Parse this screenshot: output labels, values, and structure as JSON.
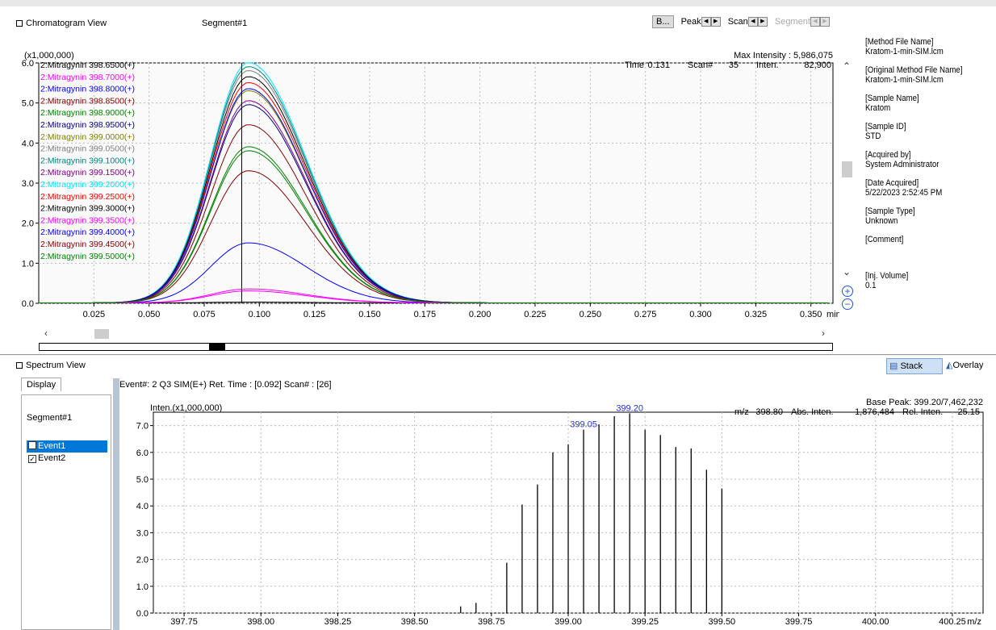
{
  "chrom": {
    "title": "Chromatogram View",
    "segment": "Segment#1",
    "b_button": "B...",
    "peak_label": "Peak",
    "scan_label": "Scan",
    "segment_label": "Segment",
    "y_unit": "(x1,000,000)",
    "max_intensity": "Max Intensity : 5,986,075",
    "cursor_readout": {
      "time_label": "Time",
      "time": "0.131",
      "scan_label": "Scan#",
      "scan": "35",
      "inten_label": "Inten.",
      "inten": "82,900"
    },
    "x_unit": "min",
    "x_ticks": [
      "0.025",
      "0.050",
      "0.075",
      "0.100",
      "0.125",
      "0.150",
      "0.175",
      "0.200",
      "0.225",
      "0.250",
      "0.275",
      "0.300",
      "0.325",
      "0.350"
    ],
    "y_ticks": [
      "0.0",
      "1.0",
      "2.0",
      "3.0",
      "4.0",
      "5.0",
      "6.0"
    ],
    "cursor_time": 0.092,
    "legend": [
      {
        "label": "2:Mitragynin 398.6500(+)",
        "color": "#000000",
        "height": 0.02
      },
      {
        "label": "2:Mitragynin 398.7000(+)",
        "color": "#ff00ff",
        "height": 0.35
      },
      {
        "label": "2:Mitragynin 398.8000(+)",
        "color": "#0000ff",
        "height": 1.5
      },
      {
        "label": "2:Mitragynin 398.8500(+)",
        "color": "#800000",
        "height": 3.3
      },
      {
        "label": "2:Mitragynin 398.9000(+)",
        "color": "#008000",
        "height": 3.9
      },
      {
        "label": "2:Mitragynin 398.9500(+)",
        "color": "#000080",
        "height": 4.95
      },
      {
        "label": "2:Mitragynin 399.0000(+)",
        "color": "#808000",
        "height": 5.3
      },
      {
        "label": "2:Mitragynin 399.0500(+)",
        "color": "#808080",
        "height": 5.8
      },
      {
        "label": "2:Mitragynin 399.1000(+)",
        "color": "#008080",
        "height": 5.9
      },
      {
        "label": "2:Mitragynin 399.1500(+)",
        "color": "#800080",
        "height": 5.05
      },
      {
        "label": "2:Mitragynin 399.2000(+)",
        "color": "#00e5ff",
        "height": 6.0
      },
      {
        "label": "2:Mitragynin 399.2500(+)",
        "color": "#ff0000",
        "height": 5.5
      },
      {
        "label": "2:Mitragynin 399.3000(+)",
        "color": "#000000",
        "height": 5.65
      },
      {
        "label": "2:Mitragynin 399.3500(+)",
        "color": "#ff00ff",
        "height": 0.3
      },
      {
        "label": "2:Mitragynin 399.4000(+)",
        "color": "#0000ff",
        "height": 5.35
      },
      {
        "label": "2:Mitragynin 399.4500(+)",
        "color": "#800000",
        "height": 4.45
      },
      {
        "label": "2:Mitragynin 399.5000(+)",
        "color": "#008000",
        "height": 3.8
      }
    ]
  },
  "info": [
    {
      "label": "[Method File Name]",
      "value": "Kratom-1-min-SIM.lcm"
    },
    {
      "label": "[Original Method File Name]",
      "value": "Kratom-1-min-SIM.lcm"
    },
    {
      "label": "[Sample Name]",
      "value": "Kratom"
    },
    {
      "label": "[Sample ID]",
      "value": "STD"
    },
    {
      "label": "[Acquired by]",
      "value": "System Administrator"
    },
    {
      "label": "[Date Acquired]",
      "value": "5/22/2023 2:52:45 PM"
    },
    {
      "label": "[Sample Type]",
      "value": "Unknown"
    },
    {
      "label": "[Comment]",
      "value": ""
    },
    {
      "label": "[Inj. Volume]",
      "value": "0.1"
    }
  ],
  "spectrum": {
    "title": "Spectrum View",
    "stack_label": "Stack",
    "overlay_label": "Overlay",
    "display_tab": "Display",
    "segment": "Segment#1",
    "events": [
      {
        "label": "Event1",
        "checked": false,
        "selected": true
      },
      {
        "label": "Event2",
        "checked": true,
        "selected": false
      }
    ],
    "header": "Event#: 2 Q3 SIM(E+)   Ret. Time : [0.092]   Scan# : [26]",
    "y_unit": "Inten.(x1,000,000)",
    "base_peak": "Base Peak: 399.20/7,462,232",
    "readout": {
      "mz_label": "m/z",
      "mz": "398.80",
      "abs_label": "Abs. Inten.",
      "abs": "1,876,484",
      "rel_label": "Rel. Inten.",
      "rel": "25.15"
    },
    "x_unit": "m/z",
    "x_ticks": [
      "397.75",
      "398.00",
      "398.25",
      "398.50",
      "398.75",
      "399.00",
      "399.25",
      "399.50",
      "399.75",
      "400.00",
      "400.25"
    ],
    "y_ticks": [
      "0.0",
      "1.0",
      "2.0",
      "3.0",
      "4.0",
      "5.0",
      "6.0",
      "7.0"
    ],
    "peak_labels": [
      "399.05",
      "399.20"
    ]
  },
  "chart_data": [
    {
      "type": "line",
      "title": "Chromatogram View",
      "xlabel": "min",
      "ylabel": "(x1,000,000)",
      "xlim": [
        0.0,
        0.36
      ],
      "ylim": [
        0,
        6.0
      ],
      "peak_center": 0.095,
      "series_note_heights_x1e6": "see chrom.legend[].height",
      "grid": true
    },
    {
      "type": "bar",
      "title": "Spectrum View",
      "xlabel": "m/z",
      "ylabel": "Inten.(x1,000,000)",
      "xlim": [
        397.65,
        400.35
      ],
      "ylim": [
        0,
        7.5
      ],
      "x": [
        398.65,
        398.7,
        398.8,
        398.85,
        398.9,
        398.95,
        399.0,
        399.05,
        399.1,
        399.15,
        399.2,
        399.25,
        399.3,
        399.35,
        399.4,
        399.45,
        399.5
      ],
      "values": [
        0.25,
        0.38,
        1.88,
        4.05,
        4.8,
        6.0,
        6.3,
        6.85,
        7.05,
        7.35,
        7.46,
        6.85,
        6.65,
        6.2,
        6.15,
        5.35,
        4.65
      ],
      "grid": true
    }
  ]
}
